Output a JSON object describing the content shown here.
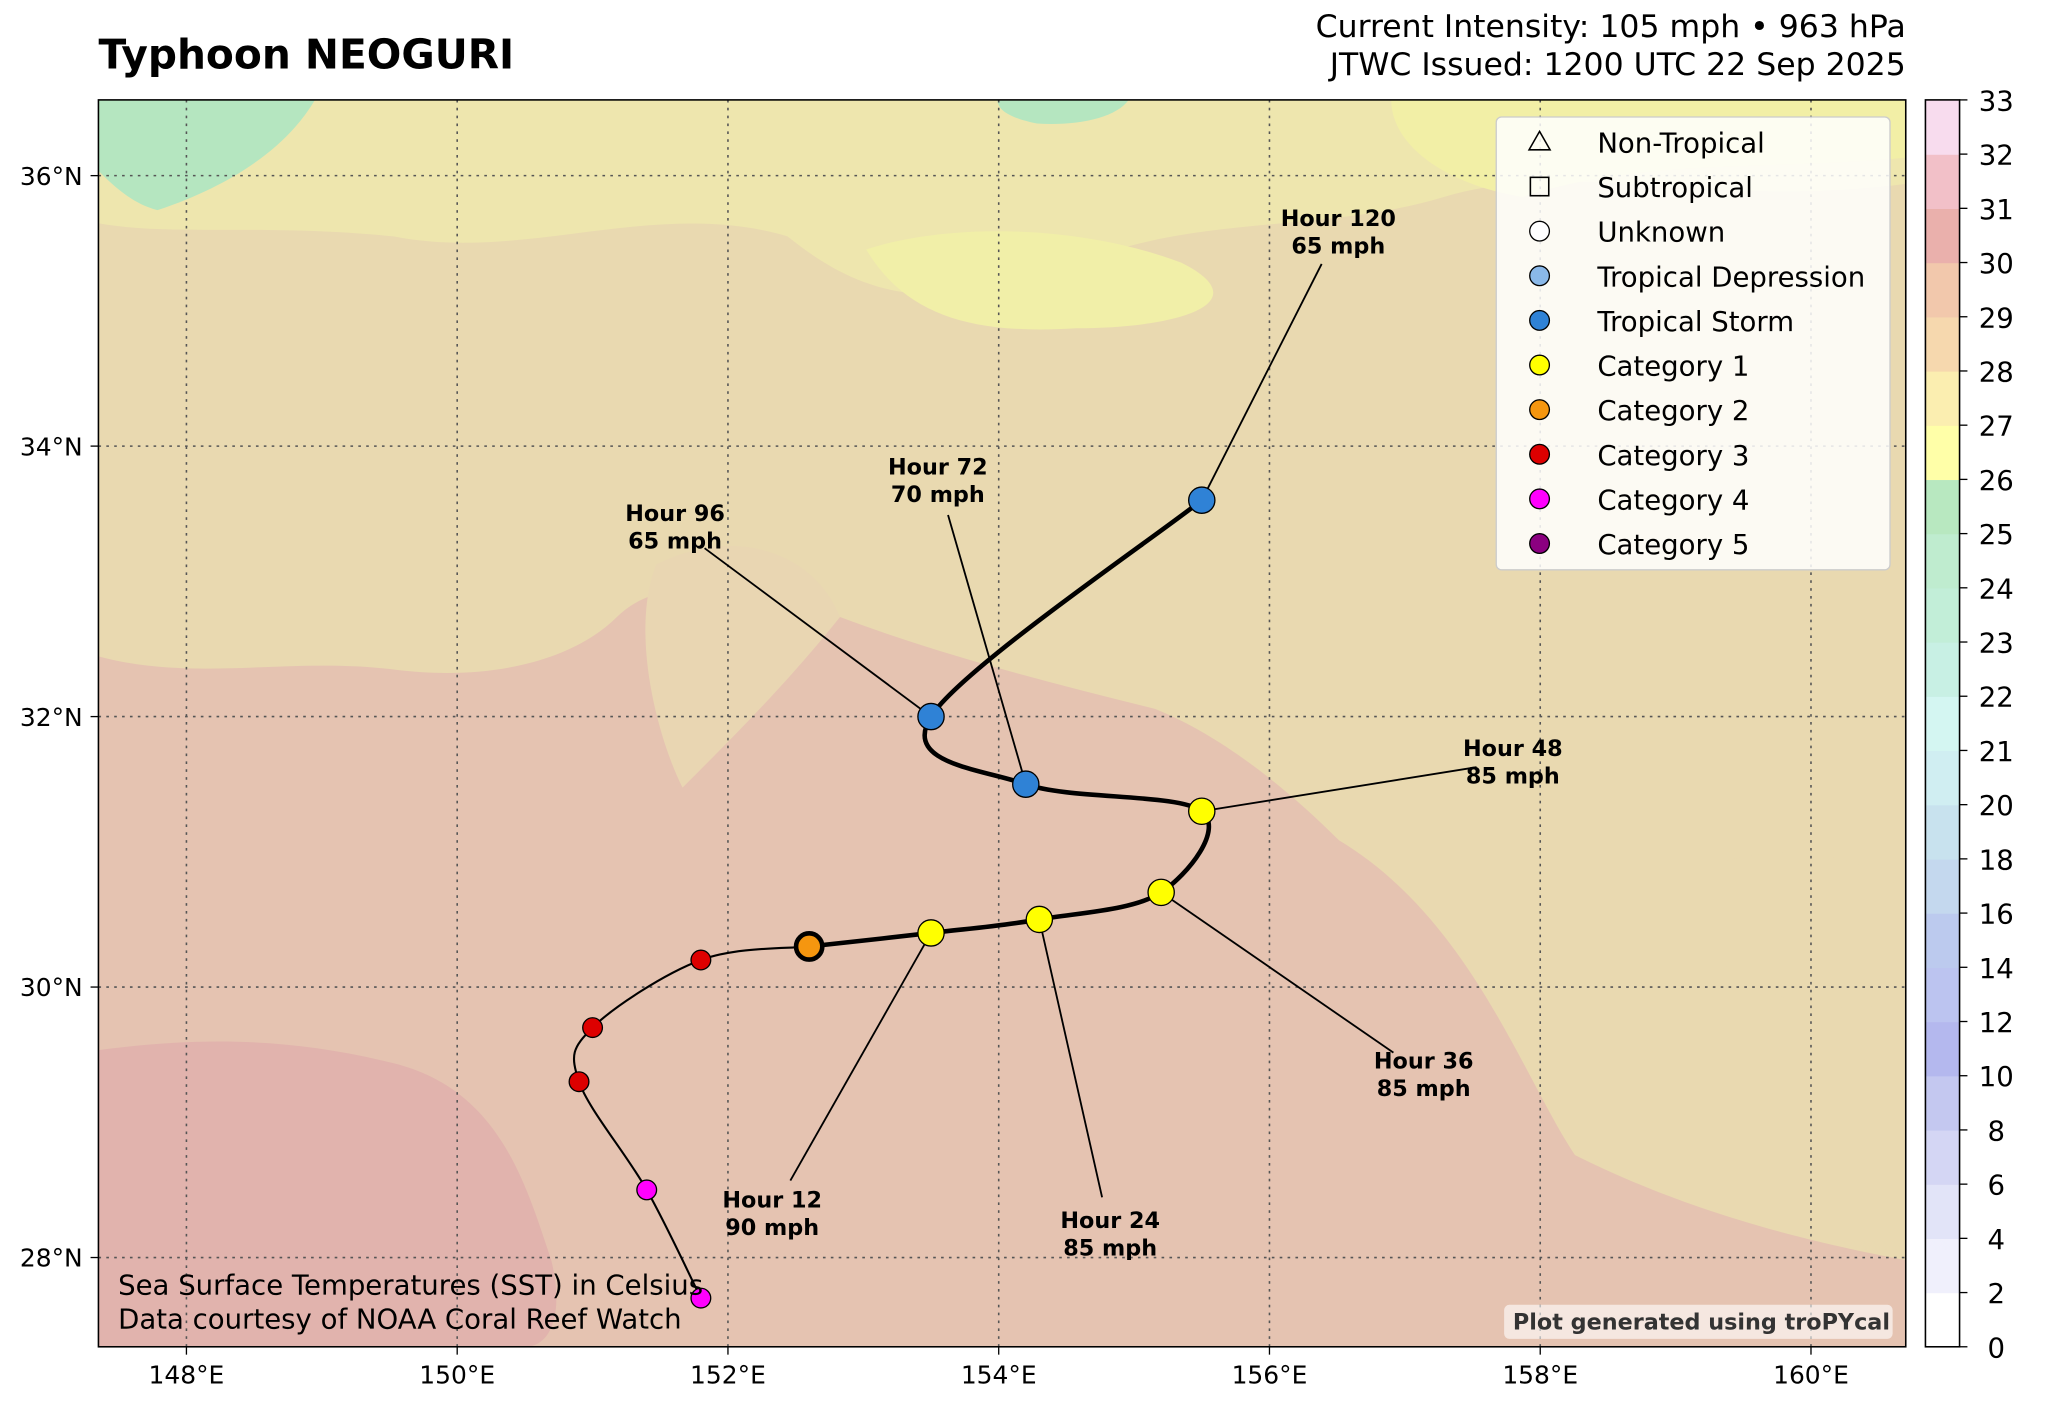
{
  "header": {
    "title": "Typhoon NEOGURI",
    "intensity": "Current Intensity: 105 mph • 963 hPa",
    "issued": "JTWC Issued: 1200 UTC 22 Sep 2025"
  },
  "map": {
    "lonlim": [
      147.35,
      160.7
    ],
    "latlim": [
      27.34,
      36.56
    ],
    "xticks": [
      {
        "value": 148,
        "label": "148°E"
      },
      {
        "value": 150,
        "label": "150°E"
      },
      {
        "value": 152,
        "label": "152°E"
      },
      {
        "value": 154,
        "label": "154°E"
      },
      {
        "value": 156,
        "label": "156°E"
      },
      {
        "value": 158,
        "label": "158°E"
      },
      {
        "value": 160,
        "label": "160°E"
      }
    ],
    "yticks": [
      {
        "value": 28,
        "label": "28°N"
      },
      {
        "value": 30,
        "label": "30°N"
      },
      {
        "value": 32,
        "label": "32°N"
      },
      {
        "value": 34,
        "label": "34°N"
      },
      {
        "value": 36,
        "label": "36°N"
      }
    ],
    "grid": true,
    "track": [
      {
        "lon": 151.8,
        "lat": 27.7,
        "category": "Category 4"
      },
      {
        "lon": 151.4,
        "lat": 28.5,
        "category": "Category 4"
      },
      {
        "lon": 150.9,
        "lat": 29.3,
        "category": "Category 3"
      },
      {
        "lon": 151.0,
        "lat": 29.7,
        "category": "Category 3"
      },
      {
        "lon": 151.8,
        "lat": 30.2,
        "category": "Category 3"
      },
      {
        "lon": 152.6,
        "lat": 30.3,
        "category": "Category 2",
        "current": true
      },
      {
        "lon": 153.5,
        "lat": 30.4,
        "category": "Category 1",
        "hour": "Hour 12",
        "wind": "90 mph"
      },
      {
        "lon": 154.3,
        "lat": 30.5,
        "category": "Category 1",
        "hour": "Hour 24",
        "wind": "85 mph"
      },
      {
        "lon": 155.2,
        "lat": 30.7,
        "category": "Category 1",
        "hour": "Hour 36",
        "wind": "85 mph"
      },
      {
        "lon": 155.5,
        "lat": 31.3,
        "category": "Category 1",
        "hour": "Hour 48",
        "wind": "85 mph"
      },
      {
        "lon": 154.2,
        "lat": 31.5,
        "category": "Tropical Storm",
        "hour": "Hour 72",
        "wind": "70 mph"
      },
      {
        "lon": 153.5,
        "lat": 32.0,
        "category": "Tropical Storm",
        "hour": "Hour 96",
        "wind": "65 mph"
      },
      {
        "lon": 155.5,
        "lat": 33.6,
        "category": "Tropical Storm",
        "hour": "Hour 120",
        "wind": "65 mph"
      }
    ]
  },
  "legend": {
    "position": "upper right",
    "items": [
      {
        "name": "Non-Tropical",
        "marker": "triangle",
        "color": "none"
      },
      {
        "name": "Subtropical",
        "marker": "square",
        "color": "none"
      },
      {
        "name": "Unknown",
        "marker": "circle",
        "color": "#ffffff"
      },
      {
        "name": "Tropical Depression",
        "marker": "circle",
        "color": "#8ab8e8"
      },
      {
        "name": "Tropical Storm",
        "marker": "circle",
        "color": "#2f82d6"
      },
      {
        "name": "Category 1",
        "marker": "circle",
        "color": "#ffff00"
      },
      {
        "name": "Category 2",
        "marker": "circle",
        "color": "#f5960f"
      },
      {
        "name": "Category 3",
        "marker": "circle",
        "color": "#dd0000"
      },
      {
        "name": "Category 4",
        "marker": "circle",
        "color": "#ff00ff"
      },
      {
        "name": "Category 5",
        "marker": "circle",
        "color": "#8b0080"
      }
    ]
  },
  "colorbar": {
    "ticks": [
      0,
      2,
      4,
      6,
      8,
      10,
      12,
      14,
      16,
      18,
      20,
      21,
      22,
      23,
      24,
      25,
      26,
      27,
      28,
      29,
      30,
      31,
      32,
      33
    ],
    "colors": [
      "#ffffff",
      "#f0f0fc",
      "#e2e4f8",
      "#d4d6f4",
      "#c4c8f0",
      "#b4b8ee",
      "#bcc4f0",
      "#bccaee",
      "#c4d8ee",
      "#c8e2ee",
      "#d0eef2",
      "#d4f6f2",
      "#c8f0e4",
      "#c2eed8",
      "#bfeccf",
      "#b8e8c0",
      "#ffffa8",
      "#fbeeb0",
      "#f6d8ae",
      "#f2c8ac",
      "#eab0ac",
      "#f2c0c8",
      "#f8dcee"
    ]
  },
  "notes": {
    "sst": "Sea Surface Temperatures (SST) in Celsius",
    "source": "Data courtesy of NOAA Coral Reef Watch",
    "credit": "Plot generated using troPYcal"
  }
}
